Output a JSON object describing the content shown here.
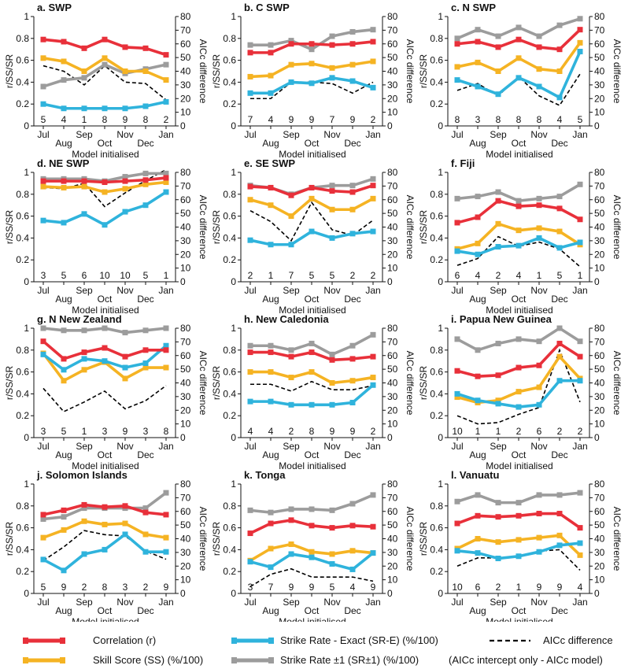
{
  "xlabel": "Model initialised",
  "ylabel_left": "r/SS/SR",
  "ylabel_right": "AICc difference",
  "months": [
    "Jul",
    "Aug",
    "Sep",
    "Oct",
    "Nov",
    "Dec",
    "Jan"
  ],
  "left_ticks": [
    "0",
    "0.2",
    "0.4",
    "0.6",
    "0.8",
    "1"
  ],
  "right_ticks": [
    "0",
    "10",
    "20",
    "30",
    "40",
    "50",
    "60",
    "70",
    "80"
  ],
  "colors": {
    "corr": "#e8303a",
    "ss": "#f5b323",
    "sre": "#2fb3dc",
    "srpm": "#9c9c9c",
    "aicc": "#000000"
  },
  "legend": {
    "corr": "Correlation (r)",
    "ss": "Skill Score (SS) (%/100)",
    "sre": "Strike Rate - Exact (SR-E) (%/100)",
    "srpm": "Strike Rate ±1 (SR±1) (%/100)",
    "aicc": "AICc difference",
    "aicc_note": "(AICc intercept only - AICc model)"
  },
  "chart_data": [
    {
      "type": "line",
      "title": "a. SWP",
      "ylim": [
        0,
        1
      ],
      "y2lim": [
        0,
        80
      ],
      "counts": [
        "5",
        "4",
        "1",
        "8",
        "9",
        "8",
        "2"
      ],
      "series": [
        {
          "key": "corr",
          "values": [
            0.79,
            0.77,
            0.71,
            0.79,
            0.72,
            0.71,
            0.65
          ]
        },
        {
          "key": "ss",
          "values": [
            0.62,
            0.59,
            0.5,
            0.62,
            0.5,
            0.5,
            0.42
          ]
        },
        {
          "key": "sre",
          "values": [
            0.2,
            0.16,
            0.16,
            0.16,
            0.16,
            0.18,
            0.22
          ]
        },
        {
          "key": "srpm",
          "values": [
            0.36,
            0.42,
            0.44,
            0.56,
            0.48,
            0.52,
            0.56
          ]
        },
        {
          "key": "aicc",
          "values": [
            44,
            40,
            30,
            44,
            32,
            31,
            19
          ]
        }
      ]
    },
    {
      "type": "line",
      "title": "b. C SWP",
      "ylim": [
        0,
        1
      ],
      "y2lim": [
        0,
        80
      ],
      "counts": [
        "7",
        "4",
        "9",
        "9",
        "7",
        "9",
        "2"
      ],
      "series": [
        {
          "key": "corr",
          "values": [
            0.67,
            0.67,
            0.75,
            0.75,
            0.74,
            0.75,
            0.77
          ]
        },
        {
          "key": "ss",
          "values": [
            0.45,
            0.46,
            0.56,
            0.57,
            0.53,
            0.56,
            0.59
          ]
        },
        {
          "key": "sre",
          "values": [
            0.3,
            0.3,
            0.4,
            0.39,
            0.44,
            0.41,
            0.35
          ]
        },
        {
          "key": "srpm",
          "values": [
            0.74,
            0.74,
            0.78,
            0.7,
            0.82,
            0.86,
            0.88
          ]
        },
        {
          "key": "aicc",
          "values": [
            20,
            20,
            32,
            32,
            31,
            24,
            32
          ]
        }
      ]
    },
    {
      "type": "line",
      "title": "c. N SWP",
      "ylim": [
        0,
        1
      ],
      "y2lim": [
        0,
        80
      ],
      "counts": [
        "8",
        "3",
        "8",
        "8",
        "8",
        "4",
        "5"
      ],
      "series": [
        {
          "key": "corr",
          "values": [
            0.75,
            0.77,
            0.72,
            0.79,
            0.72,
            0.7,
            0.88
          ]
        },
        {
          "key": "ss",
          "values": [
            0.54,
            0.58,
            0.5,
            0.62,
            0.52,
            0.5,
            0.76
          ]
        },
        {
          "key": "sre",
          "values": [
            0.42,
            0.36,
            0.29,
            0.44,
            0.36,
            0.26,
            0.68
          ]
        },
        {
          "key": "srpm",
          "values": [
            0.8,
            0.88,
            0.82,
            0.9,
            0.82,
            0.92,
            0.98
          ]
        },
        {
          "key": "aicc",
          "values": [
            26,
            31,
            22,
            36,
            22,
            15,
            38
          ]
        }
      ]
    },
    {
      "type": "line",
      "title": "d. NE SWP",
      "ylim": [
        0,
        1
      ],
      "y2lim": [
        0,
        80
      ],
      "counts": [
        "3",
        "5",
        "6",
        "10",
        "10",
        "5",
        "1"
      ],
      "series": [
        {
          "key": "corr",
          "values": [
            0.92,
            0.92,
            0.92,
            0.91,
            0.92,
            0.93,
            0.95
          ]
        },
        {
          "key": "ss",
          "values": [
            0.87,
            0.86,
            0.87,
            0.82,
            0.85,
            0.89,
            0.91
          ]
        },
        {
          "key": "sre",
          "values": [
            0.56,
            0.54,
            0.62,
            0.52,
            0.64,
            0.7,
            0.82
          ]
        },
        {
          "key": "srpm",
          "values": [
            0.94,
            0.94,
            0.94,
            0.92,
            0.96,
            0.99,
            0.99
          ]
        },
        {
          "key": "aicc",
          "values": [
            69,
            68,
            72,
            55,
            65,
            74,
            82
          ]
        }
      ]
    },
    {
      "type": "line",
      "title": "e. SE SWP",
      "ylim": [
        0,
        1
      ],
      "y2lim": [
        0,
        80
      ],
      "counts": [
        "2",
        "1",
        "7",
        "5",
        "5",
        "2",
        "2"
      ],
      "series": [
        {
          "key": "corr",
          "values": [
            0.87,
            0.86,
            0.79,
            0.86,
            0.83,
            0.82,
            0.88
          ]
        },
        {
          "key": "ss",
          "values": [
            0.75,
            0.7,
            0.6,
            0.76,
            0.66,
            0.66,
            0.76
          ]
        },
        {
          "key": "sre",
          "values": [
            0.38,
            0.34,
            0.34,
            0.46,
            0.4,
            0.44,
            0.46
          ]
        },
        {
          "key": "srpm",
          "values": [
            0.88,
            0.86,
            0.8,
            0.86,
            0.88,
            0.88,
            0.94
          ]
        },
        {
          "key": "aicc",
          "values": [
            52,
            44,
            30,
            58,
            38,
            34,
            45
          ]
        }
      ]
    },
    {
      "type": "line",
      "title": "f. Fiji",
      "ylim": [
        0,
        1
      ],
      "y2lim": [
        0,
        80
      ],
      "counts": [
        "6",
        "4",
        "2",
        "4",
        "1",
        "5",
        "1"
      ],
      "series": [
        {
          "key": "corr",
          "values": [
            0.54,
            0.59,
            0.74,
            0.69,
            0.7,
            0.67,
            0.57
          ]
        },
        {
          "key": "ss",
          "values": [
            0.3,
            0.35,
            0.53,
            0.47,
            0.49,
            0.46,
            0.34
          ]
        },
        {
          "key": "sre",
          "values": [
            0.28,
            0.25,
            0.32,
            0.33,
            0.4,
            0.31,
            0.36
          ]
        },
        {
          "key": "srpm",
          "values": [
            0.76,
            0.78,
            0.82,
            0.74,
            0.76,
            0.78,
            0.89
          ]
        },
        {
          "key": "aicc",
          "values": [
            12,
            17,
            33,
            26,
            29,
            24,
            11
          ]
        }
      ]
    },
    {
      "type": "line",
      "title": "g. N New Zealand",
      "ylim": [
        0,
        1
      ],
      "y2lim": [
        0,
        80
      ],
      "counts": [
        "3",
        "5",
        "1",
        "3",
        "9",
        "3",
        "8"
      ],
      "series": [
        {
          "key": "corr",
          "values": [
            0.88,
            0.72,
            0.78,
            0.82,
            0.74,
            0.8,
            0.8
          ]
        },
        {
          "key": "ss",
          "values": [
            0.77,
            0.52,
            0.62,
            0.69,
            0.54,
            0.64,
            0.64
          ]
        },
        {
          "key": "sre",
          "values": [
            0.76,
            0.62,
            0.72,
            0.7,
            0.64,
            0.68,
            0.84
          ]
        },
        {
          "key": "srpm",
          "values": [
            1.0,
            0.98,
            0.98,
            1.0,
            0.96,
            0.98,
            1.0
          ]
        },
        {
          "key": "aicc",
          "values": [
            36,
            19,
            26,
            34,
            21,
            27,
            38
          ]
        }
      ]
    },
    {
      "type": "line",
      "title": "h. New Caledonia",
      "ylim": [
        0,
        1
      ],
      "y2lim": [
        0,
        80
      ],
      "counts": [
        "4",
        "4",
        "2",
        "8",
        "9",
        "9",
        "2"
      ],
      "series": [
        {
          "key": "corr",
          "values": [
            0.78,
            0.78,
            0.74,
            0.78,
            0.71,
            0.72,
            0.74
          ]
        },
        {
          "key": "ss",
          "values": [
            0.6,
            0.6,
            0.55,
            0.6,
            0.5,
            0.52,
            0.55
          ]
        },
        {
          "key": "sre",
          "values": [
            0.33,
            0.33,
            0.3,
            0.3,
            0.3,
            0.32,
            0.48
          ]
        },
        {
          "key": "srpm",
          "values": [
            0.84,
            0.84,
            0.8,
            0.86,
            0.76,
            0.84,
            0.94
          ]
        },
        {
          "key": "aicc",
          "values": [
            39,
            39,
            34,
            41,
            35,
            35,
            38
          ]
        }
      ]
    },
    {
      "type": "line",
      "title": "i. Papua New Guinea",
      "ylim": [
        0,
        1
      ],
      "y2lim": [
        0,
        80
      ],
      "counts": [
        "10",
        "1",
        "1",
        "2",
        "6",
        "2",
        "2"
      ],
      "series": [
        {
          "key": "corr",
          "values": [
            0.61,
            0.56,
            0.57,
            0.64,
            0.66,
            0.86,
            0.74
          ]
        },
        {
          "key": "ss",
          "values": [
            0.37,
            0.32,
            0.34,
            0.42,
            0.46,
            0.74,
            0.54
          ]
        },
        {
          "key": "sre",
          "values": [
            0.4,
            0.34,
            0.31,
            0.28,
            0.3,
            0.52,
            0.52
          ]
        },
        {
          "key": "srpm",
          "values": [
            0.9,
            0.8,
            0.86,
            0.9,
            0.88,
            1.0,
            0.88
          ]
        },
        {
          "key": "aicc",
          "values": [
            16,
            10,
            11,
            17,
            22,
            64,
            26
          ]
        }
      ]
    },
    {
      "type": "line",
      "title": "j. Solomon Islands",
      "ylim": [
        0,
        1
      ],
      "y2lim": [
        0,
        80
      ],
      "counts": [
        "5",
        "9",
        "2",
        "8",
        "3",
        "2",
        "9"
      ],
      "series": [
        {
          "key": "corr",
          "values": [
            0.72,
            0.76,
            0.81,
            0.79,
            0.8,
            0.74,
            0.72
          ]
        },
        {
          "key": "ss",
          "values": [
            0.51,
            0.58,
            0.66,
            0.63,
            0.64,
            0.54,
            0.51
          ]
        },
        {
          "key": "sre",
          "values": [
            0.31,
            0.21,
            0.36,
            0.4,
            0.54,
            0.38,
            0.38
          ]
        },
        {
          "key": "srpm",
          "values": [
            0.68,
            0.7,
            0.78,
            0.78,
            0.78,
            0.78,
            0.92
          ]
        },
        {
          "key": "aicc",
          "values": [
            24,
            34,
            46,
            43,
            42,
            31,
            25
          ]
        }
      ]
    },
    {
      "type": "line",
      "title": "k. Tonga",
      "ylim": [
        0,
        1
      ],
      "y2lim": [
        0,
        80
      ],
      "counts": [
        "3",
        "7",
        "9",
        "9",
        "5",
        "4",
        "9"
      ],
      "series": [
        {
          "key": "corr",
          "values": [
            0.55,
            0.64,
            0.67,
            0.62,
            0.6,
            0.62,
            0.61
          ]
        },
        {
          "key": "ss",
          "values": [
            0.3,
            0.41,
            0.45,
            0.38,
            0.36,
            0.39,
            0.37
          ]
        },
        {
          "key": "sre",
          "values": [
            0.29,
            0.24,
            0.36,
            0.33,
            0.27,
            0.22,
            0.37
          ]
        },
        {
          "key": "srpm",
          "values": [
            0.76,
            0.74,
            0.77,
            0.77,
            0.76,
            0.82,
            0.9
          ]
        },
        {
          "key": "aicc",
          "values": [
            5,
            14,
            18,
            12,
            12,
            12,
            9
          ]
        }
      ]
    },
    {
      "type": "line",
      "title": "l. Vanuatu",
      "ylim": [
        0,
        1
      ],
      "y2lim": [
        0,
        80
      ],
      "counts": [
        "10",
        "6",
        "2",
        "1",
        "9",
        "9",
        "4"
      ],
      "series": [
        {
          "key": "corr",
          "values": [
            0.64,
            0.71,
            0.7,
            0.71,
            0.73,
            0.73,
            0.6
          ]
        },
        {
          "key": "ss",
          "values": [
            0.41,
            0.5,
            0.47,
            0.49,
            0.51,
            0.53,
            0.35
          ]
        },
        {
          "key": "sre",
          "values": [
            0.39,
            0.37,
            0.32,
            0.34,
            0.38,
            0.44,
            0.46
          ]
        },
        {
          "key": "srpm",
          "values": [
            0.84,
            0.9,
            0.83,
            0.83,
            0.9,
            0.9,
            0.92
          ]
        },
        {
          "key": "aicc",
          "values": [
            20,
            26,
            26,
            27,
            31,
            32,
            17
          ]
        }
      ]
    }
  ]
}
